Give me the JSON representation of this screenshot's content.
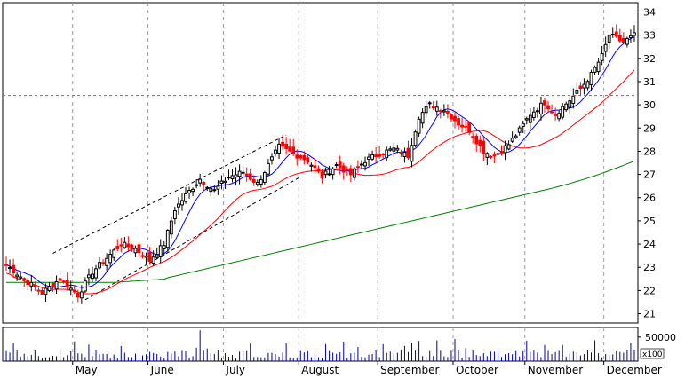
{
  "chart_data": {
    "type": "candlestick",
    "title": "",
    "price_axis": {
      "ylim": [
        20.6,
        34.4
      ],
      "ticks": [
        "21",
        "22",
        "23",
        "24",
        "25",
        "26",
        "27",
        "28",
        "29",
        "30",
        "31",
        "32",
        "33",
        "34"
      ],
      "position": "right"
    },
    "volume_axis": {
      "ylim": [
        0,
        70000
      ],
      "tick_label": "50000",
      "tick_value": 50000,
      "unit_label": "x100"
    },
    "months": [
      {
        "label": "May",
        "start_day": 19
      },
      {
        "label": "June",
        "start_day": 40
      },
      {
        "label": "July",
        "start_day": 61
      },
      {
        "label": "August",
        "start_day": 82
      },
      {
        "label": "September",
        "start_day": 104
      },
      {
        "label": "October",
        "start_day": 125
      },
      {
        "label": "November",
        "start_day": 145
      },
      {
        "label": "December",
        "start_day": 167
      }
    ],
    "grid": "dashed-vertical-at-month-starts",
    "day_count": 176,
    "reference_line": {
      "value": 30.4,
      "color": "#808000",
      "style": "dashed"
    },
    "trend_channel": {
      "upper": [
        [
          13,
          23.6
        ],
        [
          78,
          28.7
        ]
      ],
      "lower": [
        [
          22,
          21.6
        ],
        [
          82,
          26.9
        ]
      ]
    },
    "colors": {
      "up_candle": "#000000",
      "down_candle": "#ff0000",
      "ma_short": "#0000ff",
      "ma_medium": "#ff0000",
      "ma_long": "#008000",
      "volume": "#0000a0"
    },
    "key_closes": [
      [
        0,
        23.1
      ],
      [
        4,
        22.6
      ],
      [
        10,
        21.9
      ],
      [
        15,
        22.5
      ],
      [
        20,
        21.8
      ],
      [
        24,
        22.8
      ],
      [
        28,
        23.4
      ],
      [
        32,
        24.0
      ],
      [
        36,
        23.8
      ],
      [
        40,
        23.3
      ],
      [
        44,
        24.0
      ],
      [
        47,
        25.5
      ],
      [
        50,
        26.1
      ],
      [
        54,
        26.8
      ],
      [
        58,
        26.3
      ],
      [
        62,
        26.9
      ],
      [
        66,
        27.1
      ],
      [
        70,
        26.6
      ],
      [
        73,
        27.4
      ],
      [
        76,
        28.2
      ],
      [
        80,
        27.9
      ],
      [
        84,
        27.6
      ],
      [
        88,
        26.9
      ],
      [
        92,
        27.4
      ],
      [
        96,
        27.0
      ],
      [
        100,
        27.6
      ],
      [
        104,
        27.9
      ],
      [
        108,
        28.1
      ],
      [
        112,
        27.8
      ],
      [
        115,
        29.5
      ],
      [
        118,
        30.0
      ],
      [
        122,
        29.8
      ],
      [
        126,
        29.2
      ],
      [
        129,
        28.9
      ],
      [
        133,
        28.0
      ],
      [
        136,
        27.8
      ],
      [
        140,
        28.3
      ],
      [
        143,
        28.9
      ],
      [
        146,
        29.6
      ],
      [
        150,
        30.1
      ],
      [
        153,
        29.6
      ],
      [
        157,
        30.2
      ],
      [
        160,
        30.7
      ],
      [
        163,
        31.3
      ],
      [
        166,
        32.1
      ],
      [
        168,
        33.0
      ],
      [
        172,
        32.7
      ],
      [
        175,
        33.0
      ]
    ]
  }
}
